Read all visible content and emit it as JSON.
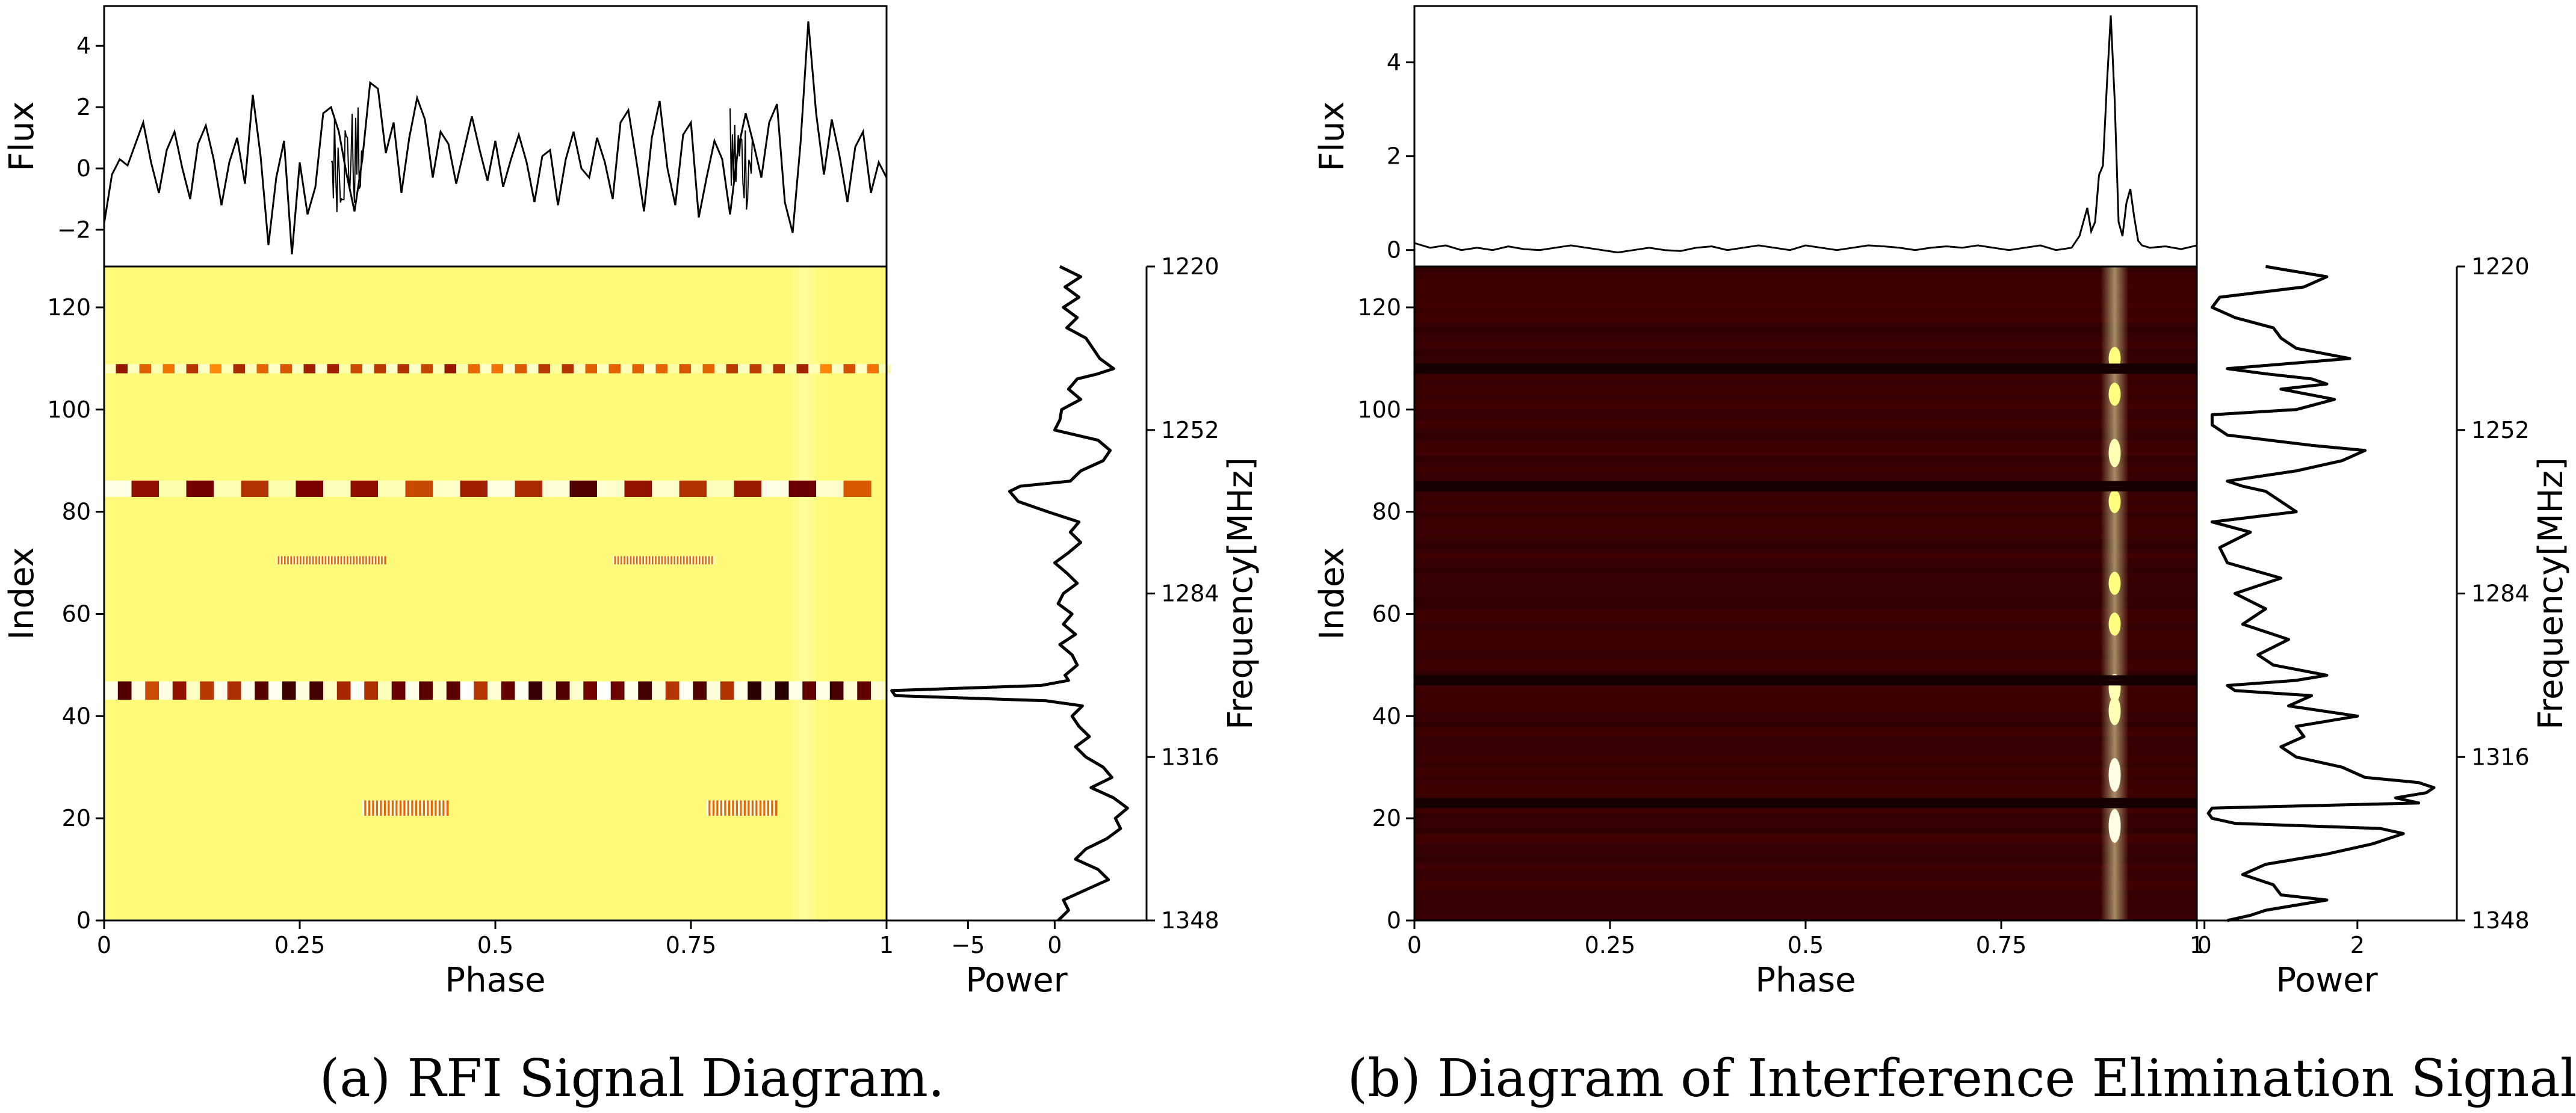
{
  "chart_data": [
    {
      "id": "a",
      "type": "heatmap",
      "caption": "(a) RFI Signal Diagram.",
      "heatmap": {
        "colormap": "afmhot",
        "background_level": 0.74,
        "x_range": [
          0,
          1
        ],
        "y_range": [
          0,
          128
        ],
        "xlabel": "Phase",
        "ylabel": "Index",
        "x_ticks": [
          0,
          0.25,
          0.5,
          0.75,
          1
        ],
        "x_tick_labels": [
          "0",
          "0.25",
          "0.5",
          "0.75",
          "1"
        ],
        "y_ticks": [
          0,
          20,
          40,
          60,
          80,
          100,
          120
        ],
        "y_tick_labels": [
          "0",
          "20",
          "40",
          "60",
          "80",
          "100",
          "120"
        ],
        "bands": [
          {
            "center": 45,
            "half_width": 1.8,
            "style": "blocks",
            "x_start": 0.0,
            "x_end": 1.0,
            "period": 0.035,
            "strength": 1.0
          },
          {
            "center": 84.5,
            "half_width": 1.6,
            "style": "blocks",
            "x_start": 0.0,
            "x_end": 0.99,
            "period": 0.07,
            "strength": 0.85
          },
          {
            "center": 108,
            "half_width": 0.9,
            "style": "blocks",
            "x_start": 0.0,
            "x_end": 1.0,
            "period": 0.03,
            "strength": 0.65
          },
          {
            "center": 70.5,
            "half_width": 0.8,
            "style": "fine",
            "x_start": 0.22,
            "x_end": 0.36,
            "period": 0.004,
            "strength": 0.55
          },
          {
            "center": 70.5,
            "half_width": 0.8,
            "style": "fine",
            "x_start": 0.65,
            "x_end": 0.78,
            "period": 0.004,
            "strength": 0.55
          },
          {
            "center": 22,
            "half_width": 1.5,
            "style": "fine",
            "x_start": 0.33,
            "x_end": 0.44,
            "period": 0.005,
            "strength": 0.7
          },
          {
            "center": 22,
            "half_width": 1.5,
            "style": "fine",
            "x_start": 0.77,
            "x_end": 0.86,
            "period": 0.005,
            "strength": 0.7
          }
        ],
        "pulse_column": {
          "phase": 0.895,
          "width": 0.02,
          "strength": 0.08
        }
      },
      "flux": {
        "ylabel": "Flux",
        "y_range": [
          -3.2,
          5.3
        ],
        "y_ticks": [
          -2,
          0,
          2,
          4
        ],
        "y_tick_labels": [
          "−2",
          "0",
          "2",
          "4"
        ],
        "phase": [
          0.0,
          0.01,
          0.02,
          0.03,
          0.04,
          0.05,
          0.06,
          0.07,
          0.08,
          0.09,
          0.1,
          0.11,
          0.12,
          0.13,
          0.14,
          0.15,
          0.16,
          0.17,
          0.18,
          0.19,
          0.2,
          0.21,
          0.22,
          0.23,
          0.24,
          0.25,
          0.26,
          0.27,
          0.28,
          0.29,
          0.3,
          0.31,
          0.32,
          0.33,
          0.34,
          0.35,
          0.36,
          0.37,
          0.38,
          0.39,
          0.4,
          0.41,
          0.42,
          0.43,
          0.44,
          0.45,
          0.46,
          0.47,
          0.48,
          0.49,
          0.5,
          0.51,
          0.52,
          0.53,
          0.54,
          0.55,
          0.56,
          0.57,
          0.58,
          0.59,
          0.6,
          0.61,
          0.62,
          0.63,
          0.64,
          0.65,
          0.66,
          0.67,
          0.68,
          0.69,
          0.7,
          0.71,
          0.72,
          0.73,
          0.74,
          0.75,
          0.76,
          0.77,
          0.78,
          0.79,
          0.8,
          0.81,
          0.82,
          0.83,
          0.84,
          0.85,
          0.86,
          0.87,
          0.88,
          0.89,
          0.9,
          0.91,
          0.92,
          0.93,
          0.94,
          0.95,
          0.96,
          0.97,
          0.98,
          0.99,
          1.0
        ],
        "values": [
          -1.8,
          -0.2,
          0.3,
          0.1,
          0.8,
          1.5,
          0.2,
          -0.8,
          0.6,
          1.2,
          0.0,
          -1.0,
          0.8,
          1.4,
          0.3,
          -1.2,
          0.2,
          1.0,
          -0.5,
          2.4,
          0.4,
          -2.5,
          -0.3,
          0.9,
          -2.8,
          0.2,
          -1.5,
          -0.6,
          1.8,
          2.0,
          1.2,
          -0.2,
          -1.4,
          0.3,
          2.8,
          2.6,
          0.5,
          1.5,
          -0.8,
          1.0,
          2.3,
          1.6,
          -0.3,
          1.2,
          0.8,
          -0.5,
          0.6,
          1.7,
          0.6,
          -0.4,
          0.9,
          -0.6,
          0.3,
          1.1,
          0.2,
          -1.1,
          0.4,
          0.6,
          -1.2,
          0.3,
          1.2,
          0.0,
          -0.3,
          1.0,
          0.2,
          -1.0,
          1.5,
          1.9,
          0.3,
          -1.4,
          1.0,
          2.2,
          0.0,
          -1.2,
          1.1,
          1.5,
          -1.6,
          -0.3,
          0.9,
          0.3,
          -1.5,
          0.6,
          1.8,
          0.8,
          -0.3,
          1.5,
          2.1,
          -1.1,
          -2.1,
          0.8,
          4.8,
          1.8,
          -0.2,
          1.6,
          0.4,
          -1.1,
          0.7,
          1.2,
          -0.8,
          0.2,
          -0.3
        ],
        "noise_regions": [
          [
            0.29,
            0.33
          ],
          [
            0.8,
            0.83
          ]
        ]
      },
      "power": {
        "xlabel": "Power",
        "x_range": [
          -9.7,
          5.3
        ],
        "x_ticks": [
          -5,
          0
        ],
        "x_tick_labels": [
          "−5",
          "0"
        ],
        "index": [
          0,
          2,
          4,
          6,
          8,
          10,
          12,
          14,
          16,
          18,
          20,
          22,
          24,
          26,
          28,
          30,
          32,
          34,
          36,
          38,
          40,
          42,
          43,
          44,
          45,
          46,
          47,
          48,
          50,
          52,
          54,
          56,
          58,
          60,
          62,
          64,
          66,
          68,
          70,
          72,
          74,
          76,
          78,
          80,
          82,
          84,
          85,
          86,
          88,
          90,
          92,
          94,
          96,
          98,
          100,
          102,
          104,
          106,
          107,
          108,
          110,
          112,
          114,
          116,
          118,
          120,
          122,
          124,
          126,
          128
        ],
        "values": [
          0.2,
          0.8,
          0.5,
          1.8,
          3.1,
          2.5,
          1.2,
          1.8,
          3.0,
          3.8,
          3.5,
          4.2,
          3.4,
          2.1,
          3.3,
          2.8,
          1.8,
          1.2,
          2.0,
          1.4,
          1.0,
          1.6,
          -0.5,
          -9.2,
          -9.4,
          -0.8,
          0.8,
          0.6,
          1.3,
          1.0,
          0.3,
          1.2,
          0.5,
          1.0,
          0.2,
          0.5,
          1.3,
          0.7,
          0.0,
          0.8,
          1.5,
          0.9,
          1.4,
          -0.4,
          -2.1,
          -2.6,
          -2.0,
          0.9,
          1.5,
          2.8,
          3.2,
          2.5,
          0.0,
          0.3,
          0.4,
          1.5,
          0.8,
          1.3,
          2.5,
          3.4,
          2.6,
          2.2,
          1.8,
          0.7,
          1.3,
          0.5,
          1.4,
          0.6,
          1.5,
          0.3
        ]
      },
      "frequency_axis": {
        "label": "Frequency[MHz]",
        "ticks": [
          1220,
          1252,
          1284,
          1316,
          1348
        ],
        "tick_labels": [
          "1220",
          "1252",
          "1284",
          "1316",
          "1348"
        ]
      }
    },
    {
      "id": "b",
      "type": "heatmap",
      "caption": "(b) Diagram of Interference Elimination Signal",
      "heatmap": {
        "colormap": "afmhot",
        "background_level": 0.11,
        "x_range": [
          0,
          1
        ],
        "y_range": [
          0,
          128
        ],
        "xlabel": "Phase",
        "ylabel": "Index",
        "x_ticks": [
          0,
          0.25,
          0.5,
          0.75,
          1
        ],
        "x_tick_labels": [
          "0",
          "0.25",
          "0.5",
          "0.75",
          "1"
        ],
        "y_ticks": [
          0,
          20,
          40,
          60,
          80,
          100,
          120
        ],
        "y_tick_labels": [
          "0",
          "20",
          "40",
          "60",
          "80",
          "100",
          "120"
        ],
        "bands": [],
        "pulse_column": {
          "phase": 0.895,
          "width": 0.018,
          "strength": 0.75
        },
        "pulse_hotspots": [
          28.5,
          18.5,
          45.5,
          41,
          91.5,
          110,
          103,
          82,
          58,
          66
        ],
        "masked_rows": [
          22,
          23,
          46,
          47,
          84,
          85,
          107,
          108
        ]
      },
      "flux": {
        "ylabel": "Flux",
        "y_range": [
          -0.35,
          5.2
        ],
        "y_ticks": [
          0,
          2,
          4
        ],
        "y_tick_labels": [
          "0",
          "2",
          "4"
        ],
        "phase": [
          0.0,
          0.02,
          0.04,
          0.06,
          0.08,
          0.1,
          0.12,
          0.14,
          0.16,
          0.18,
          0.2,
          0.22,
          0.24,
          0.26,
          0.28,
          0.3,
          0.32,
          0.34,
          0.36,
          0.38,
          0.4,
          0.42,
          0.44,
          0.46,
          0.48,
          0.5,
          0.52,
          0.54,
          0.56,
          0.58,
          0.6,
          0.62,
          0.64,
          0.66,
          0.68,
          0.7,
          0.72,
          0.74,
          0.76,
          0.78,
          0.8,
          0.82,
          0.84,
          0.85,
          0.86,
          0.865,
          0.87,
          0.875,
          0.88,
          0.885,
          0.89,
          0.895,
          0.9,
          0.905,
          0.91,
          0.915,
          0.92,
          0.925,
          0.93,
          0.94,
          0.96,
          0.98,
          1.0
        ],
        "values": [
          0.15,
          0.05,
          0.1,
          0.0,
          0.05,
          0.0,
          0.08,
          0.02,
          0.0,
          0.05,
          0.1,
          0.05,
          0.0,
          -0.05,
          0.0,
          0.05,
          0.0,
          -0.02,
          0.05,
          0.08,
          0.0,
          0.05,
          0.1,
          0.05,
          0.0,
          0.1,
          0.05,
          0.0,
          0.05,
          0.1,
          0.08,
          0.05,
          0.0,
          0.05,
          0.08,
          0.05,
          0.1,
          0.05,
          0.0,
          0.05,
          0.1,
          0.0,
          0.05,
          0.3,
          0.9,
          0.4,
          0.6,
          1.6,
          1.8,
          3.5,
          5.0,
          3.2,
          0.6,
          0.3,
          1.0,
          1.3,
          0.7,
          0.2,
          0.1,
          0.05,
          0.08,
          0.02,
          0.1
        ]
      },
      "power": {
        "xlabel": "Power",
        "x_range": [
          -0.1,
          3.3
        ],
        "x_ticks": [
          0,
          2
        ],
        "x_tick_labels": [
          "0",
          "2"
        ],
        "index": [
          0,
          1,
          2,
          3,
          4,
          5,
          7,
          9,
          11,
          13,
          15,
          17,
          18,
          19,
          20,
          21,
          22,
          23,
          24,
          25,
          26,
          27,
          28,
          30,
          32,
          34,
          36,
          38,
          40,
          42,
          44,
          45,
          46,
          47,
          48,
          50,
          52,
          55,
          58,
          61,
          64,
          67,
          70,
          73,
          76,
          78,
          80,
          82,
          84,
          85,
          86,
          88,
          90,
          92,
          93,
          95,
          97,
          99,
          100,
          102,
          104,
          105,
          106,
          107,
          108,
          110,
          112,
          114,
          116,
          118,
          120,
          122,
          124,
          126,
          128
        ],
        "values": [
          0.3,
          0.6,
          0.8,
          1.2,
          1.6,
          1.0,
          0.9,
          0.5,
          0.8,
          1.6,
          2.2,
          2.6,
          2.3,
          0.4,
          0.1,
          0.05,
          0.1,
          2.8,
          2.5,
          2.9,
          3.0,
          2.8,
          2.1,
          1.8,
          1.2,
          1.0,
          1.3,
          1.2,
          2.0,
          1.1,
          1.4,
          0.4,
          0.3,
          1.2,
          1.6,
          0.9,
          0.7,
          1.1,
          0.5,
          0.8,
          0.4,
          1.0,
          0.3,
          0.2,
          0.6,
          0.1,
          1.2,
          1.0,
          0.8,
          0.5,
          0.3,
          1.2,
          1.8,
          2.1,
          1.4,
          0.3,
          0.1,
          0.1,
          1.2,
          1.7,
          1.0,
          1.6,
          1.4,
          0.8,
          0.3,
          1.9,
          1.2,
          1.0,
          0.9,
          0.4,
          0.1,
          0.2,
          1.3,
          1.6,
          0.8
        ]
      },
      "frequency_axis": {
        "label": "Frequency[MHz]",
        "ticks": [
          1220,
          1252,
          1284,
          1316,
          1348
        ],
        "tick_labels": [
          "1220",
          "1252",
          "1284",
          "1316",
          "1348"
        ]
      }
    }
  ]
}
